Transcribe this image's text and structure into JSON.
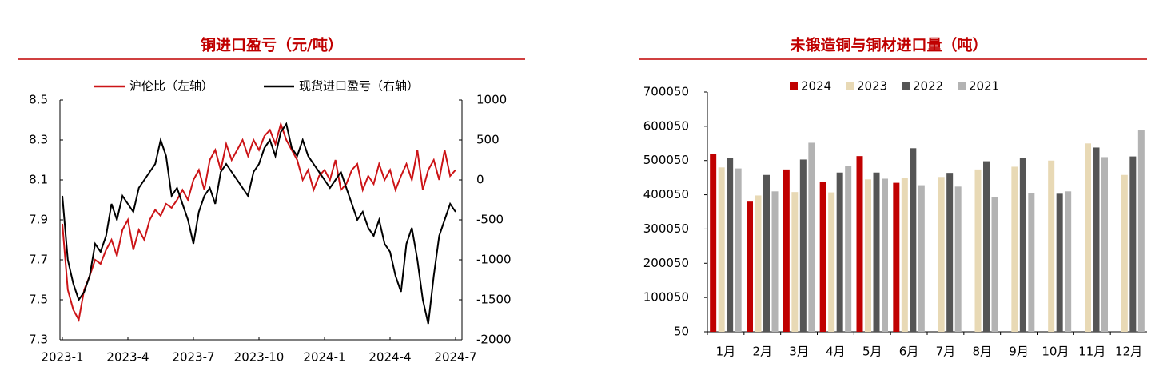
{
  "chart_data": [
    {
      "type": "line",
      "title": "铜进口盈亏（元/吨）",
      "categories": [
        "2023-1",
        null,
        null,
        null,
        null,
        null,
        null,
        null,
        null,
        null,
        null,
        null,
        "2023-4",
        null,
        null,
        null,
        null,
        null,
        null,
        null,
        null,
        null,
        null,
        null,
        "2023-7",
        null,
        null,
        null,
        null,
        null,
        null,
        null,
        null,
        null,
        null,
        null,
        "2023-10",
        null,
        null,
        null,
        null,
        null,
        null,
        null,
        null,
        null,
        null,
        null,
        "2024-1",
        null,
        null,
        null,
        null,
        null,
        null,
        null,
        null,
        null,
        null,
        null,
        "2024-4",
        null,
        null,
        null,
        null,
        null,
        null,
        null,
        null,
        null,
        null,
        null,
        "2024-7"
      ],
      "series": [
        {
          "name": "沪伦比（左轴）",
          "color": "#cc1417",
          "axis": "y",
          "values": [
            7.88,
            7.55,
            7.45,
            7.4,
            7.55,
            7.62,
            7.7,
            7.68,
            7.75,
            7.8,
            7.72,
            7.85,
            7.9,
            7.75,
            7.85,
            7.8,
            7.9,
            7.95,
            7.92,
            7.98,
            7.96,
            8.0,
            8.05,
            8.0,
            8.1,
            8.15,
            8.05,
            8.2,
            8.25,
            8.15,
            8.28,
            8.2,
            8.25,
            8.3,
            8.22,
            8.3,
            8.25,
            8.32,
            8.35,
            8.28,
            8.38,
            8.3,
            8.25,
            8.2,
            8.1,
            8.15,
            8.05,
            8.12,
            8.15,
            8.1,
            8.2,
            8.05,
            8.08,
            8.15,
            8.18,
            8.05,
            8.12,
            8.08,
            8.18,
            8.1,
            8.15,
            8.05,
            8.12,
            8.18,
            8.1,
            8.25,
            8.05,
            8.15,
            8.2,
            8.1,
            8.25,
            8.12,
            8.15
          ]
        },
        {
          "name": "现货进口盈亏（右轴）",
          "color": "#000000",
          "axis": "y2",
          "values": [
            -200,
            -1000,
            -1300,
            -1500,
            -1400,
            -1200,
            -800,
            -900,
            -700,
            -300,
            -500,
            -200,
            -300,
            -400,
            -100,
            0,
            100,
            200,
            500,
            300,
            -200,
            -100,
            -300,
            -500,
            -800,
            -400,
            -200,
            -100,
            -300,
            100,
            200,
            100,
            0,
            -100,
            -200,
            100,
            200,
            400,
            500,
            300,
            600,
            700,
            400,
            300,
            500,
            300,
            200,
            100,
            0,
            -100,
            0,
            100,
            -100,
            -300,
            -500,
            -400,
            -600,
            -700,
            -500,
            -800,
            -900,
            -1200,
            -1400,
            -800,
            -600,
            -1000,
            -1500,
            -1800,
            -1200,
            -700,
            -500,
            -300,
            -400
          ]
        }
      ],
      "ylim": [
        7.3,
        8.5
      ],
      "yticks": [
        7.3,
        7.5,
        7.7,
        7.9,
        8.1,
        8.3,
        8.5
      ],
      "y2lim": [
        -2000,
        1000
      ],
      "y2ticks": [
        -2000,
        -1500,
        -1000,
        -500,
        0,
        500,
        1000
      ]
    },
    {
      "type": "bar",
      "title": "未锻造铜与铜材进口量（吨）",
      "categories": [
        "1月",
        "2月",
        "3月",
        "4月",
        "5月",
        "6月",
        "7月",
        "8月",
        "9月",
        "10月",
        "11月",
        "12月"
      ],
      "series": [
        {
          "name": "2024",
          "color": "#c00000",
          "values": [
            520000,
            380000,
            474000,
            437000,
            513000,
            435000,
            null,
            null,
            null,
            null,
            null,
            null
          ]
        },
        {
          "name": "2023",
          "color": "#e8d9b5",
          "values": [
            480000,
            398000,
            408000,
            407000,
            445000,
            450000,
            452000,
            474000,
            482000,
            500000,
            550000,
            458000
          ]
        },
        {
          "name": "2022",
          "color": "#555555",
          "values": [
            508000,
            458000,
            503000,
            465000,
            465000,
            536000,
            464000,
            498000,
            508000,
            403000,
            538000,
            512000
          ]
        },
        {
          "name": "2021",
          "color": "#b3b3b3",
          "values": [
            477000,
            410000,
            552000,
            484000,
            447000,
            428000,
            424000,
            394000,
            406000,
            410000,
            510000,
            588000
          ]
        }
      ],
      "ylim": [
        50,
        700050
      ],
      "yticks": [
        50,
        100050,
        200050,
        300050,
        400050,
        500050,
        600050,
        700050
      ]
    }
  ]
}
